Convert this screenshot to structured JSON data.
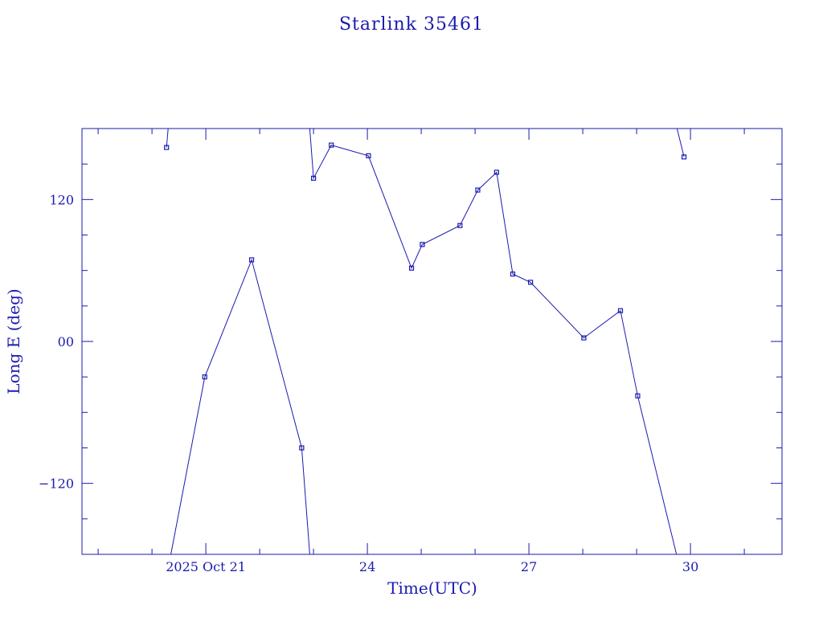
{
  "colors": {
    "ink": "#1a1ab0",
    "background": "#ffffff"
  },
  "chart_data": {
    "type": "line",
    "title": "Starlink 35461",
    "xlabel": "Time(UTC)",
    "ylabel": "Long E (deg)",
    "x_unit": "days of Oct 2025 (UTC)",
    "xlim": [
      18.7,
      31.7
    ],
    "ylim": [
      -180,
      180
    ],
    "x_ticks": [
      {
        "value": 21,
        "label": "2025 Oct 21"
      },
      {
        "value": 24,
        "label": "24"
      },
      {
        "value": 27,
        "label": "27"
      },
      {
        "value": 30,
        "label": "30"
      }
    ],
    "y_ticks": [
      {
        "value": 120,
        "label": "120"
      },
      {
        "value": 0,
        "label": "00"
      },
      {
        "value": -120,
        "label": "−120"
      }
    ],
    "markers": "small squares at sample points",
    "series": [
      {
        "segments": [
          [
            [
              20.27,
              164
            ],
            [
              20.3,
              180
            ]
          ],
          [
            [
              20.35,
              -180
            ],
            [
              20.98,
              -30
            ],
            [
              21.85,
              69
            ],
            [
              22.78,
              -90
            ],
            [
              22.93,
              -180
            ]
          ],
          [
            [
              22.93,
              180
            ],
            [
              23.0,
              138
            ],
            [
              23.33,
              166
            ],
            [
              24.02,
              157
            ],
            [
              24.82,
              62
            ],
            [
              25.02,
              82
            ],
            [
              25.72,
              98
            ],
            [
              26.05,
              128
            ],
            [
              26.4,
              143
            ],
            [
              26.7,
              57
            ],
            [
              27.03,
              50
            ],
            [
              28.02,
              3
            ],
            [
              28.7,
              26
            ],
            [
              29.02,
              -46
            ],
            [
              29.74,
              -180
            ]
          ],
          [
            [
              29.75,
              180
            ],
            [
              29.88,
              156
            ]
          ]
        ]
      }
    ],
    "grid": false,
    "legend": "none"
  }
}
